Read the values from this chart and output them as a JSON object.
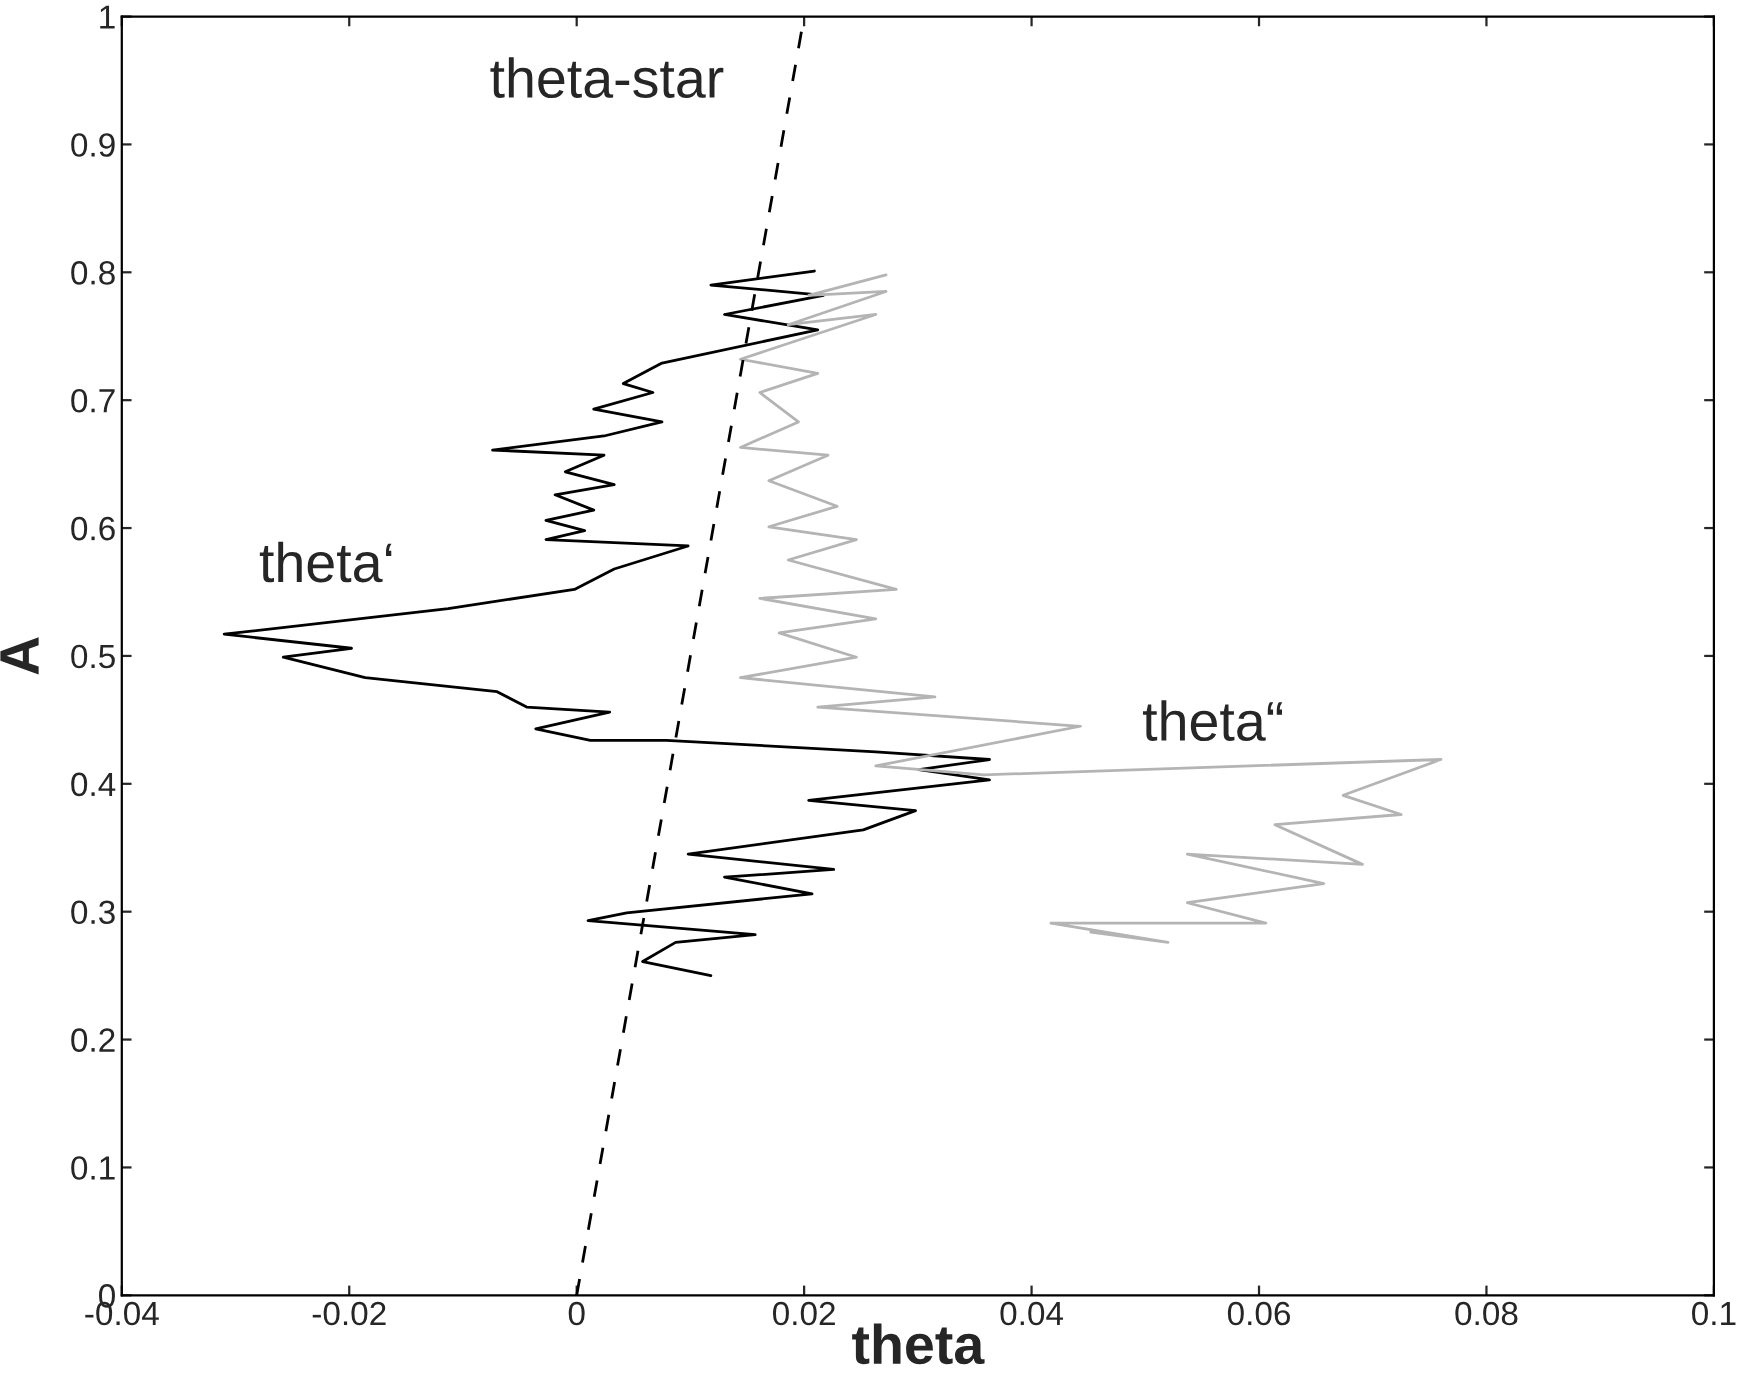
{
  "chart_data": {
    "type": "line",
    "xlabel": "theta",
    "ylabel": "A",
    "series": [
      {
        "name": "theta‘",
        "color": "#000000",
        "line_style": "solid",
        "x": [
          0.0209,
          0.0118,
          0.0217,
          0.013,
          0.0212,
          0.0075,
          0.0041,
          0.0067,
          0.0015,
          0.0075,
          0.0024,
          -0.0074,
          0.0024,
          -0.001,
          0.0033,
          -0.0019,
          0.0015,
          -0.0027,
          0.0007,
          -0.0027,
          0.0098,
          0.0033,
          -0.0002,
          -0.0113,
          -0.031,
          -0.0198,
          -0.0258,
          -0.0186,
          -0.007,
          -0.0044,
          0.0029,
          -0.0036,
          0.0012,
          0.0079,
          0.0263,
          0.0363,
          0.0301,
          0.0363,
          0.0204,
          0.0298,
          0.0252,
          0.0098,
          0.0226,
          0.013,
          0.0207,
          0.0044,
          0.001,
          0.0157,
          0.0087,
          0.0058,
          0.0118
        ],
        "values": [
          0.801,
          0.79,
          0.782,
          0.767,
          0.755,
          0.729,
          0.713,
          0.706,
          0.693,
          0.683,
          0.672,
          0.661,
          0.657,
          0.644,
          0.634,
          0.626,
          0.614,
          0.606,
          0.598,
          0.591,
          0.586,
          0.568,
          0.552,
          0.537,
          0.517,
          0.506,
          0.499,
          0.483,
          0.472,
          0.46,
          0.456,
          0.443,
          0.434,
          0.434,
          0.425,
          0.419,
          0.411,
          0.403,
          0.387,
          0.379,
          0.364,
          0.345,
          0.333,
          0.327,
          0.314,
          0.299,
          0.293,
          0.282,
          0.276,
          0.261,
          0.25
        ]
      },
      {
        "name": "theta“",
        "color": "#b4b4b4",
        "line_style": "solid",
        "x": [
          0.0272,
          0.0204,
          0.0272,
          0.0186,
          0.0263,
          0.0144,
          0.0212,
          0.0161,
          0.0195,
          0.0144,
          0.0221,
          0.0169,
          0.0229,
          0.0169,
          0.0246,
          0.0186,
          0.0281,
          0.0161,
          0.0263,
          0.0178,
          0.0246,
          0.0144,
          0.0315,
          0.0212,
          0.0443,
          0.0263,
          0.0358,
          0.076,
          0.0674,
          0.0725,
          0.0614,
          0.0691,
          0.0537,
          0.0657,
          0.0537,
          0.0606,
          0.0417,
          0.052,
          0.0452
        ],
        "values": [
          0.798,
          0.782,
          0.785,
          0.759,
          0.767,
          0.732,
          0.721,
          0.706,
          0.683,
          0.663,
          0.657,
          0.637,
          0.617,
          0.601,
          0.591,
          0.575,
          0.552,
          0.545,
          0.529,
          0.518,
          0.499,
          0.483,
          0.468,
          0.46,
          0.445,
          0.414,
          0.407,
          0.419,
          0.391,
          0.376,
          0.368,
          0.337,
          0.345,
          0.322,
          0.307,
          0.291,
          0.291,
          0.276,
          0.284
        ]
      },
      {
        "name": "theta-star",
        "color": "#000000",
        "line_style": "dashed",
        "x": [
          0,
          0.02
        ],
        "values": [
          0,
          1
        ]
      }
    ],
    "xlim": [
      -0.04,
      0.1
    ],
    "ylim": [
      0,
      1
    ],
    "xticks": [
      -0.04,
      -0.02,
      {
        "value": 0,
        "label": "0"
      },
      0.02,
      0.04,
      0.06,
      0.08,
      0.1
    ],
    "yticks": [
      {
        "value": 0,
        "label": "0"
      },
      0.1,
      0.2,
      0.3,
      0.4,
      0.5,
      0.6,
      0.7,
      0.8,
      0.9,
      {
        "value": 1,
        "label": "1"
      }
    ],
    "grid": false,
    "legend": false
  }
}
